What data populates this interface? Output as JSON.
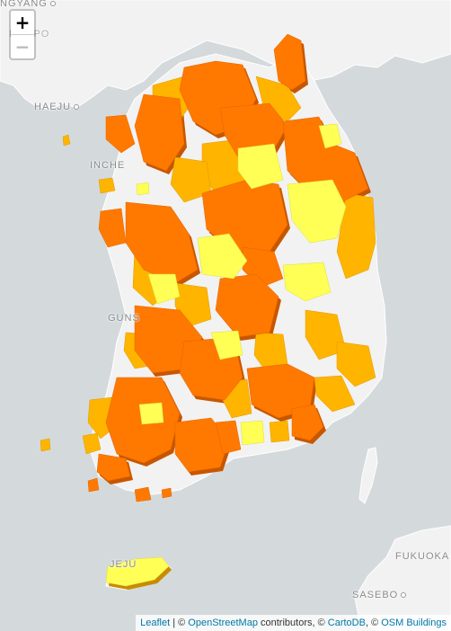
{
  "map": {
    "colors": {
      "sea": "#d4dadc",
      "land": "#f2f2f2",
      "border": "#ffffff",
      "high": "#ff7800",
      "high_side": "#c75600",
      "mid": "#ffb400",
      "mid_side": "#c98a00",
      "low": "#ffff55",
      "low_side": "#c8c83a",
      "none": "#ffffff",
      "none_side": "#cfcfcf"
    },
    "city_labels": {
      "pyongyang": "NGYANG",
      "nampo": "NAMPO",
      "haeju": "HAEJU",
      "incheon": "INCHE",
      "gunsan": "GUNS",
      "jeju": "JEJU",
      "fukuoka": "FUKUOKA",
      "sasebo": "SASEBO"
    }
  },
  "zoom": {
    "in_label": "+",
    "out_label": "−"
  },
  "attribution": {
    "leaflet": "Leaflet",
    "sep1": " | © ",
    "osm": "OpenStreetMap",
    "contrib": " contributors, © ",
    "carto": "CartoDB",
    "sep2": ", © ",
    "osmb": "OSM Buildings"
  }
}
